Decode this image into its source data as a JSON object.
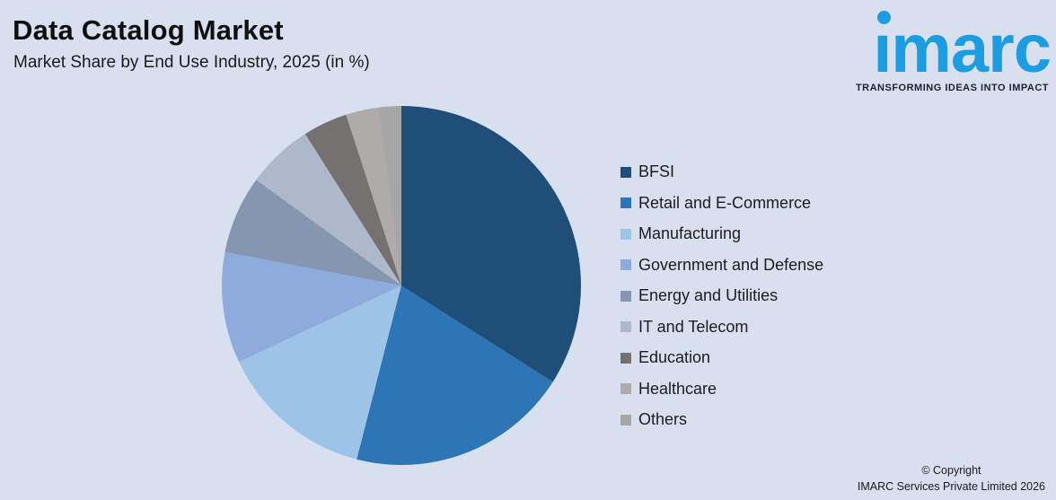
{
  "page": {
    "title": "Data Catalog Market",
    "subtitle": "Market Share by End Use Industry, 2025 (in %)",
    "background_color": "#D8E0F0"
  },
  "logo": {
    "wordmark": "imarc",
    "tagline": "TRANSFORMING IDEAS INTO IMPACT",
    "brand_color": "#1A9DE1"
  },
  "chart_data": {
    "type": "pie",
    "title": "Data Catalog Market",
    "subtitle": "Market Share by End Use Industry, 2025 (in %)",
    "unit": "%",
    "start_angle_deg": 0,
    "direction": "clockwise",
    "legend_position": "right",
    "data_labels_shown": false,
    "categories": [
      "BFSI",
      "Retail and E-Commerce",
      "Manufacturing",
      "Government and Defense",
      "Energy and Utilities",
      "IT and Telecom",
      "Education",
      "Healthcare",
      "Others"
    ],
    "values": [
      34,
      20,
      14,
      10,
      7,
      6,
      4,
      3,
      2
    ],
    "colors": [
      "#1F4E79",
      "#2E75B6",
      "#9DC3E6",
      "#8FAADC",
      "#8496B0",
      "#ADB9CA",
      "#767171",
      "#AFABAB",
      "#A6A6A6"
    ]
  },
  "footer": {
    "copyright_line1": "© Copyright",
    "copyright_line2": "IMARC Services Private Limited 2026"
  }
}
